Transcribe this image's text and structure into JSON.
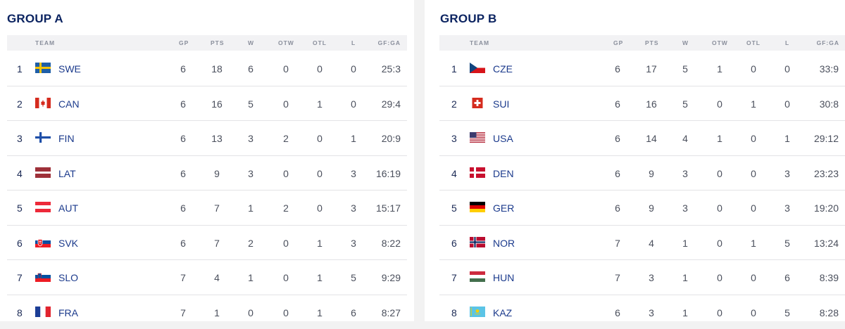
{
  "columns": {
    "team": "TEAM",
    "gp": "GP",
    "pts": "PTS",
    "w": "W",
    "otw": "OTW",
    "otl": "OTL",
    "l": "L",
    "gfga": "GF:GA"
  },
  "groups": [
    {
      "title": "GROUP A",
      "rows": [
        {
          "rank": "1",
          "code": "SWE",
          "flag": "swe-flag",
          "gp": "6",
          "pts": "18",
          "w": "6",
          "otw": "0",
          "otl": "0",
          "l": "0",
          "gfga": "25:3"
        },
        {
          "rank": "2",
          "code": "CAN",
          "flag": "can-flag",
          "gp": "6",
          "pts": "16",
          "w": "5",
          "otw": "0",
          "otl": "1",
          "l": "0",
          "gfga": "29:4"
        },
        {
          "rank": "3",
          "code": "FIN",
          "flag": "fin-flag",
          "gp": "6",
          "pts": "13",
          "w": "3",
          "otw": "2",
          "otl": "0",
          "l": "1",
          "gfga": "20:9"
        },
        {
          "rank": "4",
          "code": "LAT",
          "flag": "lat-flag",
          "gp": "6",
          "pts": "9",
          "w": "3",
          "otw": "0",
          "otl": "0",
          "l": "3",
          "gfga": "16:19"
        },
        {
          "rank": "5",
          "code": "AUT",
          "flag": "aut-flag",
          "gp": "6",
          "pts": "7",
          "w": "1",
          "otw": "2",
          "otl": "0",
          "l": "3",
          "gfga": "15:17"
        },
        {
          "rank": "6",
          "code": "SVK",
          "flag": "svk-flag",
          "gp": "6",
          "pts": "7",
          "w": "2",
          "otw": "0",
          "otl": "1",
          "l": "3",
          "gfga": "8:22"
        },
        {
          "rank": "7",
          "code": "SLO",
          "flag": "slo-flag",
          "gp": "7",
          "pts": "4",
          "w": "1",
          "otw": "0",
          "otl": "1",
          "l": "5",
          "gfga": "9:29"
        },
        {
          "rank": "8",
          "code": "FRA",
          "flag": "fra-flag",
          "gp": "7",
          "pts": "1",
          "w": "0",
          "otw": "0",
          "otl": "1",
          "l": "6",
          "gfga": "8:27"
        }
      ]
    },
    {
      "title": "GROUP B",
      "rows": [
        {
          "rank": "1",
          "code": "CZE",
          "flag": "cze-flag",
          "gp": "6",
          "pts": "17",
          "w": "5",
          "otw": "1",
          "otl": "0",
          "l": "0",
          "gfga": "33:9"
        },
        {
          "rank": "2",
          "code": "SUI",
          "flag": "sui-flag",
          "gp": "6",
          "pts": "16",
          "w": "5",
          "otw": "0",
          "otl": "1",
          "l": "0",
          "gfga": "30:8"
        },
        {
          "rank": "3",
          "code": "USA",
          "flag": "usa-flag",
          "gp": "6",
          "pts": "14",
          "w": "4",
          "otw": "1",
          "otl": "0",
          "l": "1",
          "gfga": "29:12"
        },
        {
          "rank": "4",
          "code": "DEN",
          "flag": "den-flag",
          "gp": "6",
          "pts": "9",
          "w": "3",
          "otw": "0",
          "otl": "0",
          "l": "3",
          "gfga": "23:23"
        },
        {
          "rank": "5",
          "code": "GER",
          "flag": "ger-flag",
          "gp": "6",
          "pts": "9",
          "w": "3",
          "otw": "0",
          "otl": "0",
          "l": "3",
          "gfga": "19:20"
        },
        {
          "rank": "6",
          "code": "NOR",
          "flag": "nor-flag",
          "gp": "7",
          "pts": "4",
          "w": "1",
          "otw": "0",
          "otl": "1",
          "l": "5",
          "gfga": "13:24"
        },
        {
          "rank": "7",
          "code": "HUN",
          "flag": "hun-flag",
          "gp": "7",
          "pts": "3",
          "w": "1",
          "otw": "0",
          "otl": "0",
          "l": "6",
          "gfga": "8:39"
        },
        {
          "rank": "8",
          "code": "KAZ",
          "flag": "kaz-flag",
          "gp": "6",
          "pts": "3",
          "w": "1",
          "otw": "0",
          "otl": "0",
          "l": "5",
          "gfga": "8:28"
        }
      ]
    }
  ]
}
